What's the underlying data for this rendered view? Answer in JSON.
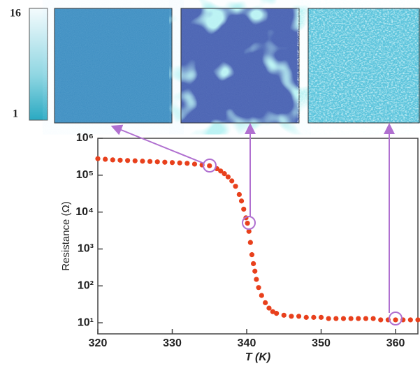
{
  "chart_data": {
    "type": "scatter",
    "ylabel": "Resistance (Ω)",
    "xlabel": "T (K)",
    "color": "#e8401c",
    "log_y": true,
    "xlim": [
      320,
      363
    ],
    "xticks": [
      320,
      330,
      340,
      350,
      360
    ],
    "ylim": [
      5,
      1000000
    ],
    "yticks": [
      {
        "value": 10,
        "label": "10¹"
      },
      {
        "value": 100,
        "label": "10²"
      },
      {
        "value": 1000,
        "label": "10³"
      },
      {
        "value": 10000,
        "label": "10⁴"
      },
      {
        "value": 100000,
        "label": "10⁵"
      },
      {
        "value": 1000000,
        "label": "10⁶"
      }
    ],
    "colorbar_ticks": [
      16,
      1
    ],
    "x": [
      320,
      321,
      322,
      323,
      324,
      325,
      326,
      327,
      328,
      329,
      330,
      331,
      332,
      333,
      334,
      335,
      336,
      336.5,
      337,
      337.5,
      338,
      338.5,
      339,
      339.3,
      339.6,
      339.9,
      340.1,
      340.3,
      340.5,
      340.7,
      340.9,
      341.1,
      341.3,
      341.6,
      342,
      342.5,
      343,
      343.5,
      344,
      345,
      346,
      347,
      348,
      349,
      350,
      351,
      352,
      353,
      354,
      355,
      356,
      357,
      358,
      359,
      360,
      361,
      362,
      363
    ],
    "values": [
      280000,
      270000,
      260000,
      255000,
      250000,
      245000,
      240000,
      235000,
      230000,
      225000,
      220000,
      215000,
      210000,
      200000,
      190000,
      180000,
      150000,
      130000,
      110000,
      90000,
      70000,
      50000,
      30000,
      20000,
      12000,
      7000,
      5000,
      3000,
      1500,
      700,
      400,
      250,
      150,
      90,
      55,
      35,
      25,
      20,
      18,
      16,
      15,
      15,
      14,
      14,
      14,
      13,
      13,
      13,
      13,
      13,
      13,
      13,
      12,
      12,
      12,
      12,
      12,
      12
    ]
  }
}
